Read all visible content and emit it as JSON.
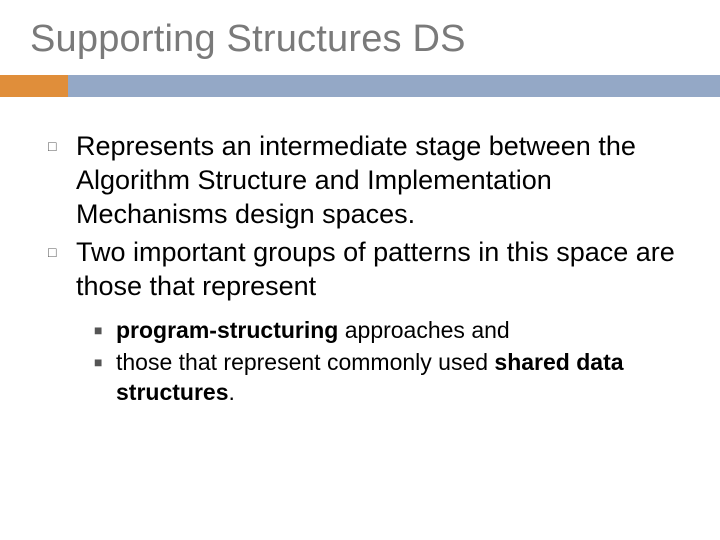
{
  "colors": {
    "title_color": "#7a7a7a",
    "accent_color": "#e08e3a",
    "bar_color": "#94a8c6",
    "text_color": "#000000",
    "background": "#ffffff"
  },
  "typography": {
    "title_fontsize": 38,
    "bullet_fontsize": 27,
    "sub_fontsize": 23
  },
  "title": "Supporting Structures DS",
  "bullets": [
    {
      "text": "Represents an intermediate stage between the Algorithm Structure and Implementation Mechanisms design spaces."
    },
    {
      "text": "Two important groups of patterns in this space are those that represent"
    }
  ],
  "sub_bullets": [
    {
      "bold1": "program-structuring",
      "rest1": " approaches and"
    },
    {
      "pre2": "those that represent commonly used ",
      "bold2": "shared data structures",
      "post2": "."
    }
  ]
}
